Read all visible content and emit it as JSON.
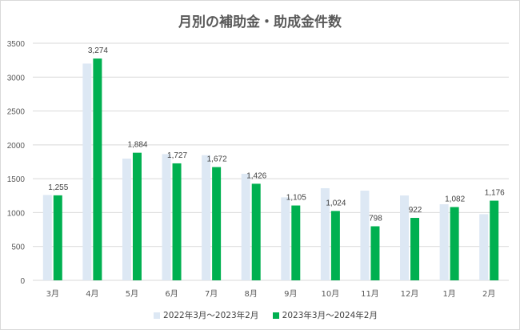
{
  "chart_data": {
    "type": "bar",
    "title": "月別の補助金・助成金件数",
    "categories": [
      "3月",
      "4月",
      "5月",
      "6月",
      "7月",
      "8月",
      "9月",
      "10月",
      "11月",
      "12月",
      "1月",
      "2月"
    ],
    "series": [
      {
        "name": "2022年3月～2023年2月",
        "color": "#dde8f4",
        "values": [
          1260,
          3200,
          1797,
          1864,
          1848,
          1573,
          1225,
          1360,
          1324,
          1253,
          1123,
          977
        ],
        "labels": false
      },
      {
        "name": "2023年3月～2024年2月",
        "color": "#00b050",
        "values": [
          1255,
          3274,
          1884,
          1727,
          1672,
          1426,
          1105,
          1024,
          798,
          922,
          1082,
          1176
        ],
        "data_labels": [
          "1,255",
          "3,274",
          "1,884",
          "1,727",
          "1,672",
          "1,426",
          "1,105",
          "1,024",
          "798",
          "922",
          "1,082",
          "1,176"
        ]
      }
    ],
    "yticks": [
      "0",
      "500",
      "1000",
      "1500",
      "2000",
      "2500",
      "3000",
      "3500"
    ],
    "ylim": [
      0,
      3500
    ],
    "grid": true,
    "legend": "bottom"
  }
}
